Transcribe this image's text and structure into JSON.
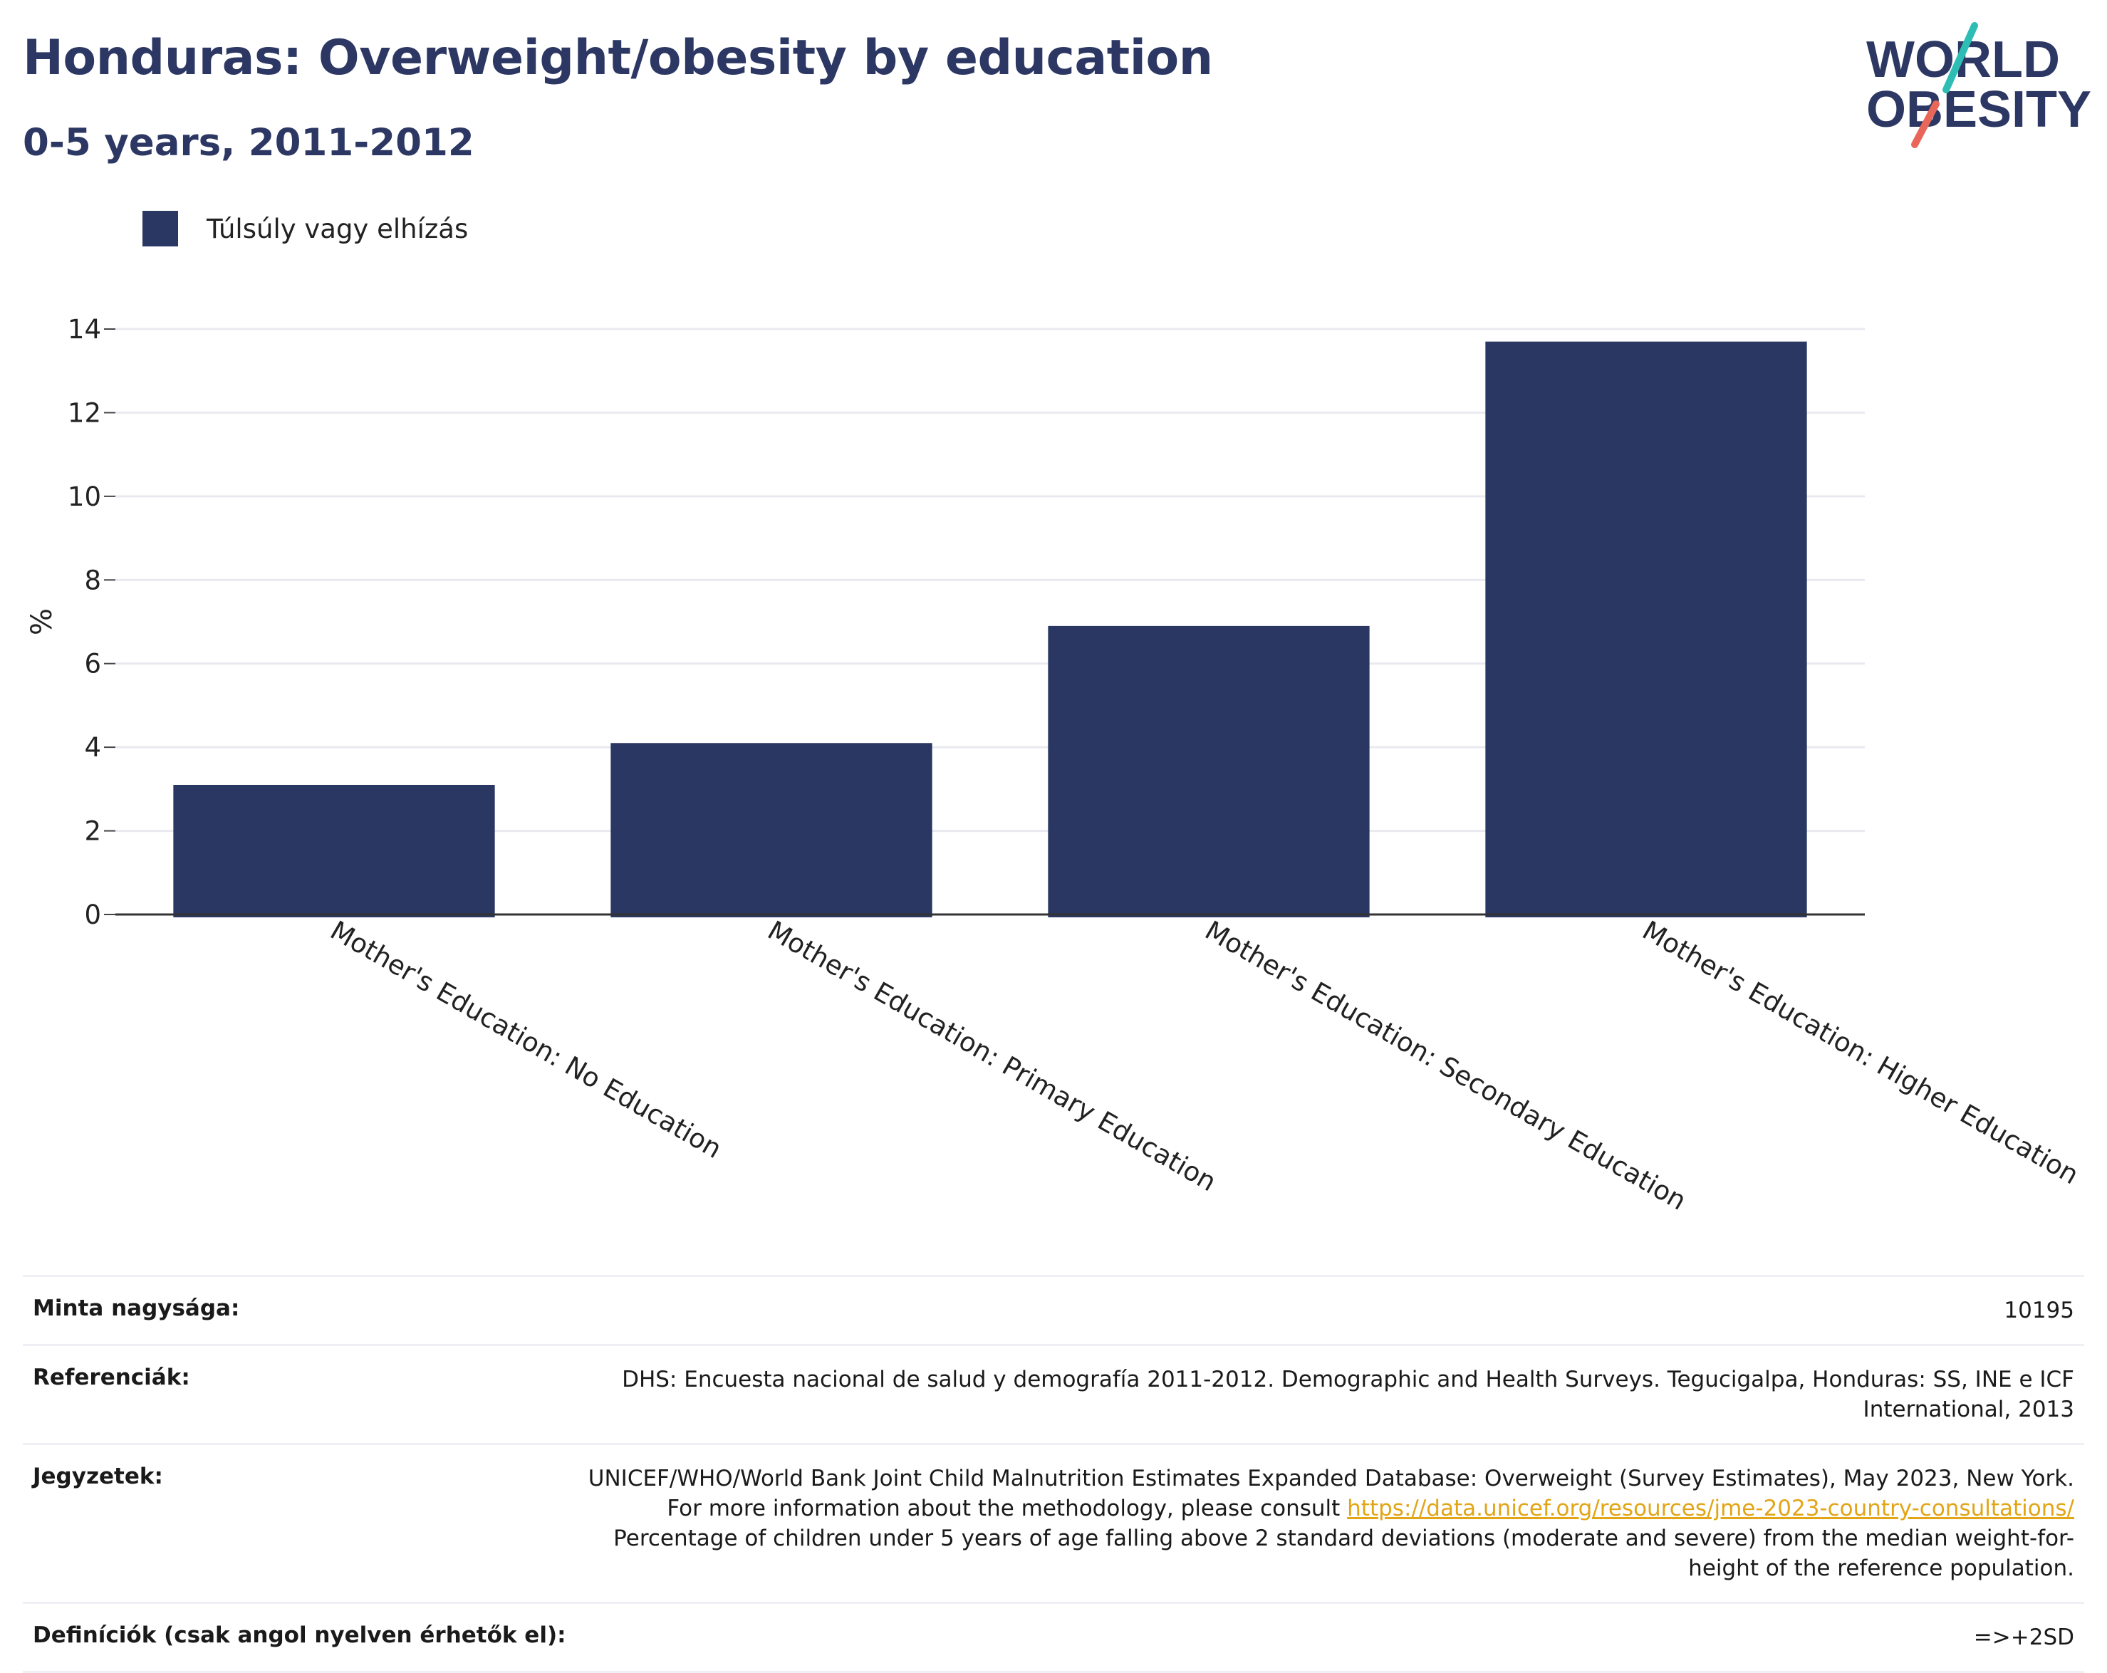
{
  "header": {
    "title": "Honduras: Overweight/obesity by education",
    "subtitle": "0-5 years, 2011-2012"
  },
  "logo": {
    "line1": "WORLD",
    "line2": "OBESITY",
    "colors": {
      "text": "#2c3863",
      "slash_top": "#2ebdb5",
      "slash_bottom": "#e8675a"
    }
  },
  "legend": {
    "items": [
      {
        "label": "Túlsúly vagy elhízás",
        "color": "#2b3763"
      }
    ]
  },
  "chart_data": {
    "type": "bar",
    "categories": [
      "Mother's Education: No Education",
      "Mother's Education: Primary Education",
      "Mother's Education: Secondary Education",
      "Mother's Education: Higher Education"
    ],
    "series": [
      {
        "name": "Túlsúly vagy elhízás",
        "values": [
          3.1,
          4.1,
          6.9,
          13.7
        ],
        "color": "#2b3763"
      }
    ],
    "ylabel": "%",
    "xlabel": "",
    "ylim": [
      0,
      14
    ],
    "yticks": [
      0,
      2,
      4,
      6,
      8,
      10,
      12,
      14
    ],
    "grid": true,
    "legend_position": "top-left"
  },
  "meta": {
    "rows": [
      {
        "label": "Minta nagysága:",
        "value": "10195"
      },
      {
        "label": "Referenciák:",
        "value": "DHS: Encuesta nacional de salud y demografía 2011-2012. Demographic and Health Surveys. Tegucigalpa, Honduras: SS, INE e ICF International, 2013"
      },
      {
        "label": "Jegyzetek:",
        "value_pre": "UNICEF/WHO/World Bank Joint Child Malnutrition Estimates Expanded Database: Overweight (Survey Estimates), May 2023, New York. For more information about the methodology, please consult ",
        "link": "https://data.unicef.org/resources/jme-2023-country-consultations/",
        "value_post": " Percentage of children under 5 years of age falling above 2 standard deviations (moderate and severe) from the median weight-for-height of the reference population."
      },
      {
        "label": "Definíciók (csak angol nyelven érhetők el):",
        "value": "=>+2SD"
      }
    ]
  }
}
